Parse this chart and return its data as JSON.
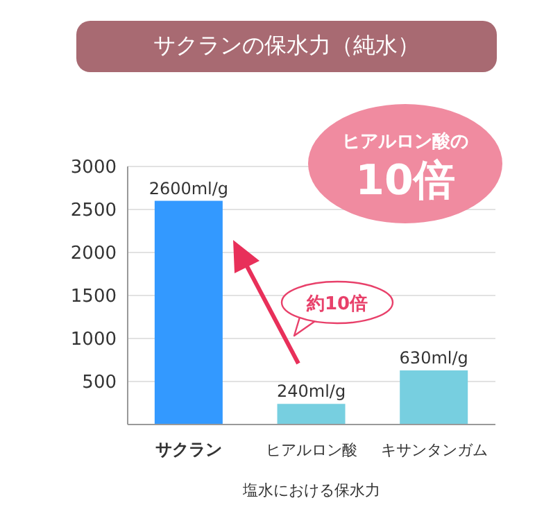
{
  "chart_data": {
    "type": "bar",
    "title": "サクランの保水力（純水）",
    "xlabel": "塩水における保水力",
    "categories": [
      "サクラン",
      "ヒアルロン酸",
      "キサンタンガム"
    ],
    "values": [
      2600,
      240,
      630
    ],
    "colors": [
      "#3399ff",
      "#77cfe0",
      "#77cfe0"
    ],
    "value_labels": [
      "2600ml/g",
      "240ml/g",
      "630ml/g"
    ],
    "ylim": [
      0,
      3000
    ],
    "yticks": [
      500,
      1000,
      1500,
      2000,
      2500,
      3000
    ],
    "grid": "y",
    "annotations": [
      "ヒアルロン酸の",
      "10倍",
      "約10倍"
    ]
  }
}
